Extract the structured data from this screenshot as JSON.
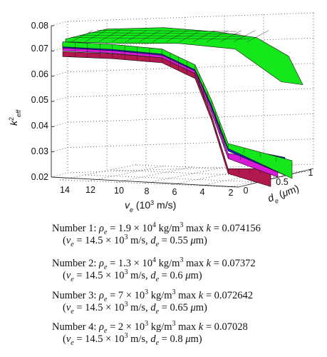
{
  "chart_data": {
    "type": "surface3d",
    "title": "",
    "zlabel": "k_eff^2",
    "xlabel": "v_e (10^3 m/s)",
    "ylabel": "d_e (μm)",
    "z_ticks": [
      "0.02",
      "0.03",
      "0.04",
      "0.05",
      "0.06",
      "0.07",
      "0.08"
    ],
    "x_ticks": [
      "14",
      "12",
      "10",
      "8",
      "6",
      "4",
      "2"
    ],
    "y_ticks": [
      "0",
      "0.5",
      "1"
    ],
    "z_range": [
      0.02,
      0.08
    ],
    "x_range": [
      15,
      1
    ],
    "y_range": [
      0,
      1
    ],
    "grid": true,
    "series": [
      {
        "color": "#14e81a",
        "values": [
          0.074156,
          0.0735,
          0.072,
          0.066,
          0.052,
          0.035
        ],
        "de_at_max": 0.55,
        "ve_at_max": 14.5
      },
      {
        "color": "#1e22b8",
        "values": [
          0.07372,
          0.073,
          0.0715,
          0.0655,
          0.051,
          0.034
        ],
        "de_at_max": 0.6,
        "ve_at_max": 14.5
      },
      {
        "color": "#d81ad8",
        "values": [
          0.072642,
          0.072,
          0.0705,
          0.0645,
          0.049,
          0.031
        ],
        "de_at_max": 0.65,
        "ve_at_max": 14.5
      },
      {
        "color": "#b0184e",
        "values": [
          0.07028,
          0.0698,
          0.0685,
          0.0625,
          0.046,
          0.025
        ],
        "de_at_max": 0.8,
        "ve_at_max": 14.5
      }
    ]
  },
  "legend": [
    {
      "number": "Number 1:",
      "rho_mant": "1.9",
      "rho_exp": "4",
      "max_k": "0.074156",
      "ve_mant": "14.5",
      "ve_exp": "3",
      "de": "0.55"
    },
    {
      "number": "Number 2:",
      "rho_mant": "1.3",
      "rho_exp": "4",
      "max_k": "0.07372",
      "ve_mant": "14.5",
      "ve_exp": "3",
      "de": "0.6"
    },
    {
      "number": "Number 3:",
      "rho_mant": "7",
      "rho_exp": "3",
      "max_k": "0.072642",
      "ve_mant": "14.5",
      "ve_exp": "3",
      "de": "0.65"
    },
    {
      "number": "Number 4:",
      "rho_mant": "2",
      "rho_exp": "3",
      "max_k": "0.07028",
      "ve_mant": "14.5",
      "ve_exp": "3",
      "de": "0.8"
    }
  ]
}
